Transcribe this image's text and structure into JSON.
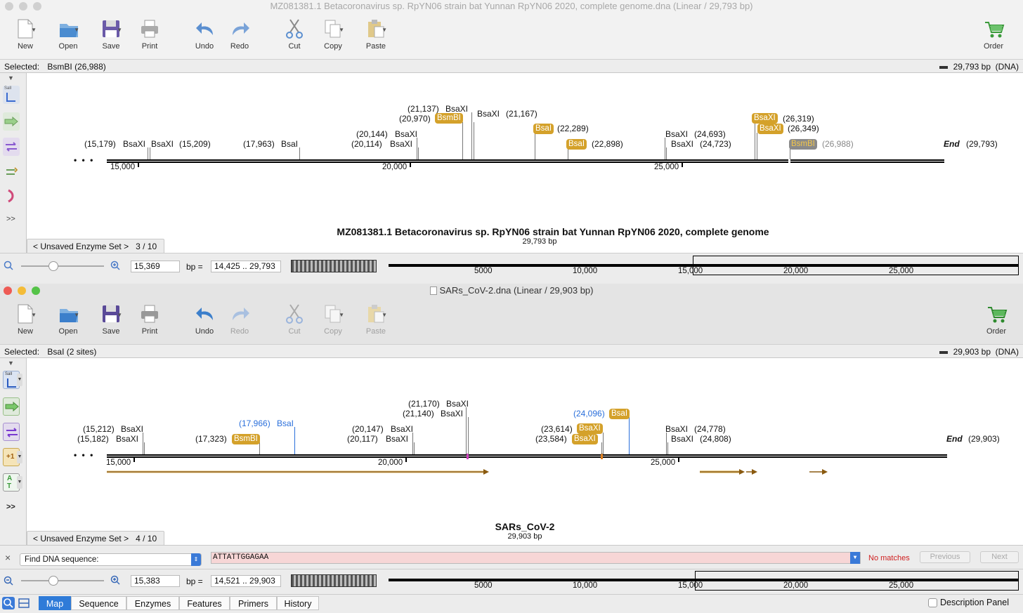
{
  "window1": {
    "title": "MZ081381.1 Betacoronavirus sp. RpYN06 strain bat Yunnan RpYN06 2020, complete genome.dna  (Linear / 29,793 bp)",
    "toolbar": {
      "new": "New",
      "open": "Open",
      "save": "Save",
      "print": "Print",
      "undo": "Undo",
      "redo": "Redo",
      "cut": "Cut",
      "copy": "Copy",
      "paste": "Paste",
      "order": "Order"
    },
    "selected_label": "Selected:",
    "selected_value": "BsmBI (26,988)",
    "length": "29,793 bp",
    "mol_type": "(DNA)",
    "ellipsis": "• • •",
    "end_label": "End",
    "end_pos": "(29,793)",
    "scale": [
      "15,000",
      "20,000",
      "25,000"
    ],
    "sites": [
      {
        "pos": "(15,179)",
        "name": "BsaXI"
      },
      {
        "pos": "(15,209)",
        "name": "BsaXI"
      },
      {
        "pos": "(17,963)",
        "name": "BsaI"
      },
      {
        "pos": "(20,144)",
        "name": "BsaXI"
      },
      {
        "pos": "(20,114)",
        "name": "BsaXI"
      },
      {
        "pos": "(21,137)",
        "name": "BsaXI"
      },
      {
        "pos": "(20,970)",
        "name": "BsmBI"
      },
      {
        "pos": "(21,167)",
        "name": "BsaXI"
      },
      {
        "pos": "(22,289)",
        "name": "BsaI"
      },
      {
        "pos": "(22,898)",
        "name": "BsaI"
      },
      {
        "pos": "(24,693)",
        "name": "BsaXI"
      },
      {
        "pos": "(24,723)",
        "name": "BsaXI"
      },
      {
        "pos": "(26,319)",
        "name": "BsaXI"
      },
      {
        "pos": "(26,349)",
        "name": "BsaXI"
      },
      {
        "pos": "(26,988)",
        "name": "BsmBI"
      }
    ],
    "map_title": "MZ081381.1 Betacoronavirus sp. RpYN06 strain bat Yunnan RpYN06 2020, complete genome",
    "map_subtitle": "29,793 bp",
    "enzyme_set": "< Unsaved Enzyme Set >",
    "enzyme_count": "3 / 10",
    "zoom_value": "15,369",
    "bp_eq": "bp  =",
    "range": "14,425  ..  29,793",
    "overview_ticks": [
      "5000",
      "10,000",
      "15,000",
      "20,000",
      "25,000"
    ]
  },
  "window2": {
    "title": "SARs_CoV-2.dna  (Linear / 29,903 bp)",
    "toolbar": {
      "new": "New",
      "open": "Open",
      "save": "Save",
      "print": "Print",
      "undo": "Undo",
      "redo": "Redo",
      "cut": "Cut",
      "copy": "Copy",
      "paste": "Paste",
      "order": "Order"
    },
    "selected_label": "Selected:",
    "selected_value": "BsaI  (2 sites)",
    "length": "29,903 bp",
    "mol_type": "(DNA)",
    "ellipsis": "• • •",
    "end_label": "End",
    "end_pos": "(29,903)",
    "scale": [
      "15,000",
      "20,000",
      "25,000"
    ],
    "sites": [
      {
        "pos": "(15,212)",
        "name": "BsaXI"
      },
      {
        "pos": "(15,182)",
        "name": "BsaXI"
      },
      {
        "pos": "(17,323)",
        "name": "BsmBI"
      },
      {
        "pos": "(17,966)",
        "name": "BsaI"
      },
      {
        "pos": "(20,147)",
        "name": "BsaXI"
      },
      {
        "pos": "(20,117)",
        "name": "BsaXI"
      },
      {
        "pos": "(21,170)",
        "name": "BsaXI"
      },
      {
        "pos": "(21,140)",
        "name": "BsaXI"
      },
      {
        "pos": "(24,096)",
        "name": "BsaI"
      },
      {
        "pos": "(23,614)",
        "name": "BsaXI"
      },
      {
        "pos": "(23,584)",
        "name": "BsaXI"
      },
      {
        "pos": "(24,778)",
        "name": "BsaXI"
      },
      {
        "pos": "(24,808)",
        "name": "BsaXI"
      }
    ],
    "map_title": "SARs_CoV-2",
    "map_subtitle": "29,903 bp",
    "enzyme_set": "< Unsaved Enzyme Set >",
    "enzyme_count": "4 / 10",
    "find": {
      "close": "×",
      "label": "Find DNA sequence:",
      "query": "ATTATTGGAGAA",
      "status": "No matches",
      "previous": "Previous",
      "next": "Next"
    },
    "zoom_value": "15,383",
    "bp_eq": "bp  =",
    "range": "14,521  ..  29,903",
    "overview_ticks": [
      "5000",
      "10,000",
      "15,000",
      "20,000",
      "25,000"
    ],
    "side_labels": {
      "sali": "SalI",
      "plus1": "+1",
      "at": "A T",
      "more": ">>"
    }
  },
  "tabs": [
    "Map",
    "Sequence",
    "Enzymes",
    "Features",
    "Primers",
    "History"
  ],
  "description_panel": "Description Panel",
  "colors": {
    "enzyme_badge": "#d4a12a",
    "blue_site": "#2a6fdb",
    "active_tab": "#2f7bd8",
    "orf_arrow": "#d4a12a",
    "find_bg": "#f7d6d6"
  }
}
